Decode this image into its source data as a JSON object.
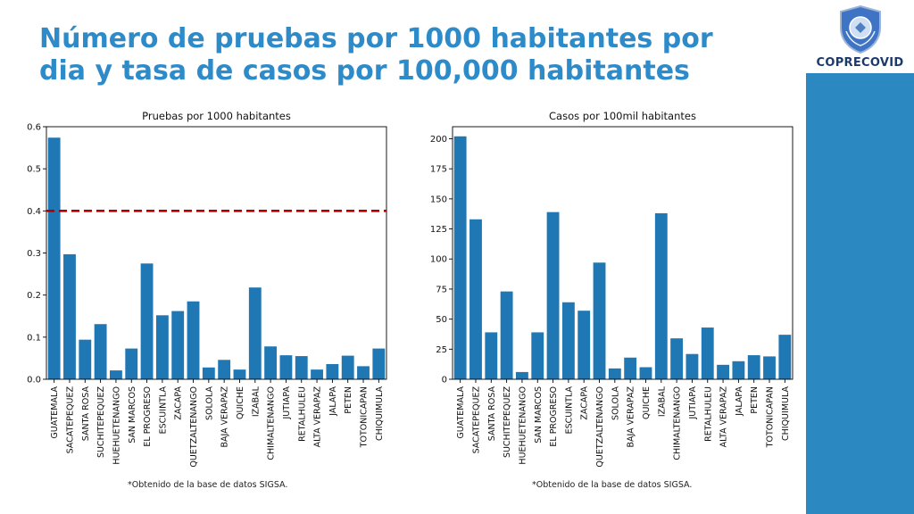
{
  "header": {
    "title_line1": "Número de pruebas por 1000 habitantes por",
    "title_line2": "dia y tasa de casos por 100,000 habitantes"
  },
  "logo": {
    "text": "COPRECOVID",
    "icon": "shield-emblem-icon"
  },
  "colors": {
    "title": "#2e8bc9",
    "bar": "#1f77b4",
    "reference_line": "#b00000",
    "sidebar": "#2c88c0"
  },
  "chart_data": [
    {
      "type": "bar",
      "title": "Pruebas por 1000 habitantes",
      "categories": [
        "GUATEMALA",
        "SACATEPEQUEZ",
        "SANTA ROSA",
        "SUCHITEPEQUEZ",
        "HUEHUETENANGO",
        "SAN MARCOS",
        "EL PROGRESO",
        "ESCUINTLA",
        "ZACAPA",
        "QUETZALTENANGO",
        "SOLOLA",
        "BAJA VERAPAZ",
        "QUICHE",
        "IZABAL",
        "CHIMALTENANGO",
        "JUTIAPA",
        "RETALHULEU",
        "ALTA VERAPAZ",
        "JALAPA",
        "PETEN",
        "TOTONICAPAN",
        "CHIQUIMULA"
      ],
      "values": [
        0.574,
        0.297,
        0.094,
        0.131,
        0.021,
        0.073,
        0.275,
        0.152,
        0.162,
        0.185,
        0.028,
        0.046,
        0.023,
        0.218,
        0.078,
        0.057,
        0.055,
        0.023,
        0.036,
        0.056,
        0.031,
        0.073
      ],
      "ylim": [
        0,
        0.6
      ],
      "yticks": [
        "0.0",
        "0.1",
        "0.2",
        "0.3",
        "0.4",
        "0.5",
        "0.6"
      ],
      "reference_line": 0.4,
      "xlabel": "",
      "ylabel": "",
      "footnote": "*Obtenido de la base de datos SIGSA."
    },
    {
      "type": "bar",
      "title": "Casos por 100mil habitantes",
      "categories": [
        "GUATEMALA",
        "SACATEPEQUEZ",
        "SANTA ROSA",
        "SUCHITEPEQUEZ",
        "HUEHUETENANGO",
        "SAN MARCOS",
        "EL PROGRESO",
        "ESCUINTLA",
        "ZACAPA",
        "QUETZALTENANGO",
        "SOLOLA",
        "BAJA VERAPAZ",
        "QUICHE",
        "IZABAL",
        "CHIMALTENANGO",
        "JUTIAPA",
        "RETALHULEU",
        "ALTA VERAPAZ",
        "JALAPA",
        "PETEN",
        "TOTONICAPAN",
        "CHIQUIMULA"
      ],
      "values": [
        202,
        133,
        39,
        73,
        6,
        39,
        139,
        64,
        57,
        97,
        9,
        18,
        10,
        138,
        34,
        21,
        43,
        12,
        15,
        20,
        19,
        37
      ],
      "ylim": [
        0,
        210
      ],
      "yticks": [
        "0",
        "25",
        "50",
        "75",
        "100",
        "125",
        "150",
        "175",
        "200"
      ],
      "xlabel": "",
      "ylabel": "",
      "footnote": "*Obtenido de la base de datos SIGSA."
    }
  ]
}
